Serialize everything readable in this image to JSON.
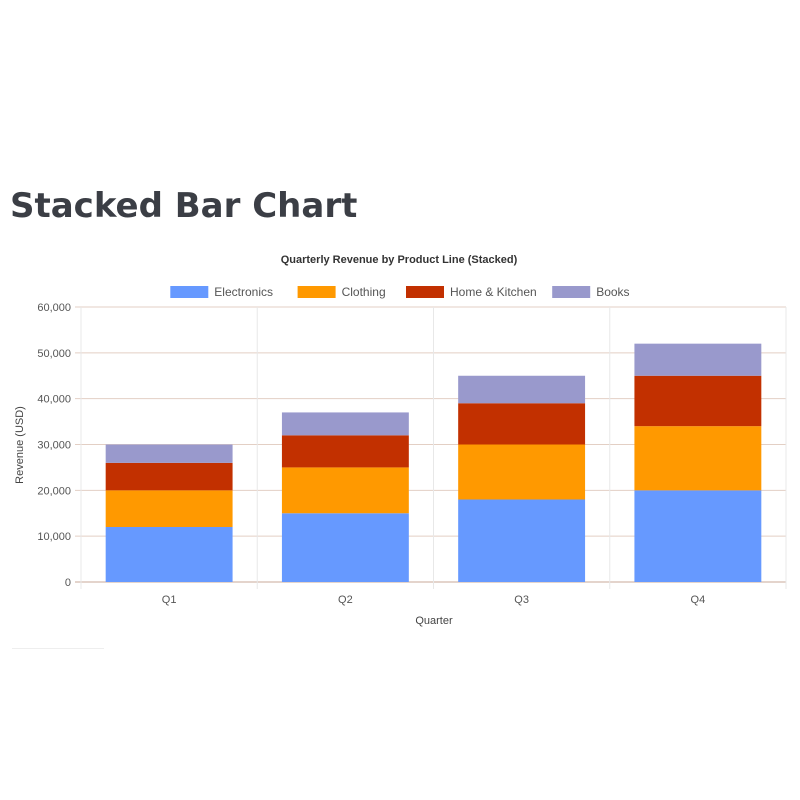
{
  "page": {
    "heading": "Stacked Bar Chart"
  },
  "chart_data": {
    "type": "bar",
    "stacked": true,
    "title": "Quarterly Revenue by Product Line (Stacked)",
    "xlabel": "Quarter",
    "ylabel": "Revenue (USD)",
    "categories": [
      "Q1",
      "Q2",
      "Q3",
      "Q4"
    ],
    "ylim": [
      0,
      60000
    ],
    "yticks": [
      0,
      10000,
      20000,
      30000,
      40000,
      50000,
      60000
    ],
    "ytick_labels": [
      "0",
      "10,000",
      "20,000",
      "30,000",
      "40,000",
      "50,000",
      "60,000"
    ],
    "legend_position": "top",
    "grid": true,
    "series": [
      {
        "name": "Electronics",
        "color": "#6699ff",
        "values": [
          12000,
          15000,
          18000,
          20000
        ]
      },
      {
        "name": "Clothing",
        "color": "#ff9900",
        "values": [
          8000,
          10000,
          12000,
          14000
        ]
      },
      {
        "name": "Home & Kitchen",
        "color": "#c23000",
        "values": [
          6000,
          7000,
          9000,
          11000
        ]
      },
      {
        "name": "Books",
        "color": "#9999cc",
        "values": [
          4000,
          5000,
          6000,
          7000
        ]
      }
    ]
  }
}
